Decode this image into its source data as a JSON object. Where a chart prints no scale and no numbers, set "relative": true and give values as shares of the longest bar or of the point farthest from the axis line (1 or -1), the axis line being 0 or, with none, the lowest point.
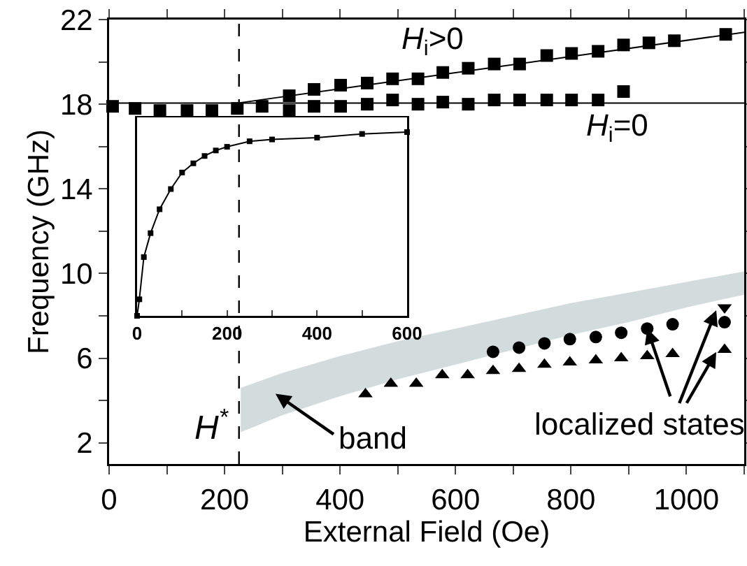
{
  "chart_data": [
    {
      "type": "scatter",
      "xlabel": "External Field (Oe)",
      "ylabel": "Frequency (GHz)",
      "xlim": [
        0,
        1100
      ],
      "xticks": [
        0,
        {
          "value": 100,
          "label": null
        },
        200,
        {
          "value": 300,
          "label": null
        },
        400,
        {
          "value": 500,
          "label": null
        },
        600,
        {
          "value": 700,
          "label": null
        },
        800,
        {
          "value": 900,
          "label": null
        },
        1000,
        {
          "value": 1100,
          "label": null
        }
      ],
      "ylim": [
        1,
        22
      ],
      "yticks": [
        2,
        {
          "value": 4,
          "label": null
        },
        6,
        {
          "value": 8,
          "label": null
        },
        10,
        {
          "value": 12,
          "label": null
        },
        14,
        {
          "value": 16,
          "label": null
        },
        18,
        {
          "value": 20,
          "label": null
        },
        22
      ],
      "series": [
        {
          "marker": "square",
          "color": "#000000",
          "x": [
            6,
            45,
            88,
            135,
            178,
            222,
            265,
            312,
            355,
            401,
            447,
            491,
            535,
            578,
            622,
            667,
            711,
            758,
            801,
            847,
            891
          ],
          "values": [
            17.9,
            17.8,
            17.7,
            17.7,
            17.7,
            17.8,
            17.9,
            17.7,
            17.9,
            17.9,
            18.0,
            18.2,
            18.0,
            18.1,
            18.0,
            18.2,
            18.2,
            18.2,
            18.2,
            18.2,
            18.6
          ]
        },
        {
          "marker": "square",
          "color": "#000000",
          "x": [
            312,
            355,
            401,
            447,
            491,
            535,
            578,
            622,
            667,
            711,
            758,
            801,
            847,
            891,
            935,
            979,
            1068
          ],
          "values": [
            18.4,
            18.7,
            18.9,
            19.0,
            19.2,
            19.2,
            19.5,
            19.7,
            19.9,
            19.9,
            20.3,
            20.4,
            20.5,
            20.8,
            20.9,
            21.0,
            21.3
          ]
        },
        {
          "type": "line",
          "marker": "none",
          "line_style": "solid",
          "color": "#000000",
          "x": [
            0,
            1100
          ],
          "values": [
            18.05,
            18.05
          ]
        },
        {
          "type": "line",
          "marker": "none",
          "line_style": "solid",
          "color": "#000000",
          "x": [
            222,
            1100
          ],
          "values": [
            18.05,
            21.4
          ]
        },
        {
          "type": "line",
          "marker": "none",
          "line_style": "solid",
          "color": "#d3dcdc",
          "x": [
            228,
            300,
            400,
            500,
            600,
            700,
            800,
            900,
            1000,
            1100
          ],
          "values": [
            null,
            null,
            null,
            null,
            null,
            null,
            null,
            null,
            null,
            null
          ],
          "lower": [
            2.5,
            3.3,
            4.2,
            5.0,
            5.7,
            6.4,
            7.1,
            7.7,
            8.4,
            9.0
          ],
          "upper": [
            4.6,
            5.3,
            6.1,
            6.8,
            7.4,
            8.0,
            8.6,
            9.1,
            9.6,
            10.1
          ]
        },
        {
          "marker": "triangle",
          "color": "#000000",
          "x": [
            444,
            488,
            532,
            577,
            621,
            665,
            710,
            754,
            798,
            843,
            887,
            932,
            976,
            1066
          ],
          "values": [
            4.3,
            4.8,
            4.8,
            5.2,
            5.2,
            5.4,
            5.5,
            5.7,
            5.8,
            5.9,
            6.0,
            6.1,
            6.2,
            6.4
          ]
        },
        {
          "marker": "circle",
          "color": "#000000",
          "x": [
            665,
            710,
            754,
            798,
            843,
            887,
            932,
            976,
            1066
          ],
          "values": [
            6.3,
            6.5,
            6.7,
            6.9,
            7.0,
            7.2,
            7.4,
            7.6,
            7.7
          ]
        },
        {
          "marker": "triangle-down",
          "color": "#000000",
          "x": [
            1066
          ],
          "values": [
            8.4
          ]
        }
      ],
      "ref_lines": [
        {
          "axis": "x",
          "value": 225,
          "label": "H$^{*}$",
          "line_style": "dashed",
          "color": "#000000"
        }
      ],
      "annotations": [
        "H$_{i}$>0",
        "H$_{i}$=0",
        "band",
        {
          "text": "localized states",
          "x": 932,
          "y": 7.4
        }
      ]
    },
    {
      "type": "line",
      "relative": true,
      "tick_labels": "x",
      "xlim": [
        0,
        600
      ],
      "xticks": [
        0,
        {
          "value": 100,
          "label": null
        },
        200,
        {
          "value": 300,
          "label": null
        },
        400,
        {
          "value": 500,
          "label": null
        },
        600
      ],
      "series": [
        {
          "marker": "square",
          "line_style": "solid",
          "color": "#000000",
          "x": [
            0,
            5,
            15,
            30,
            50,
            75,
            100,
            125,
            150,
            175,
            200,
            250,
            300,
            400,
            500,
            600
          ],
          "values": [
            0,
            0.09,
            0.32,
            0.45,
            0.58,
            0.69,
            0.78,
            0.83,
            0.87,
            0.9,
            0.92,
            0.95,
            0.96,
            0.97,
            0.99,
            1
          ]
        }
      ]
    }
  ]
}
